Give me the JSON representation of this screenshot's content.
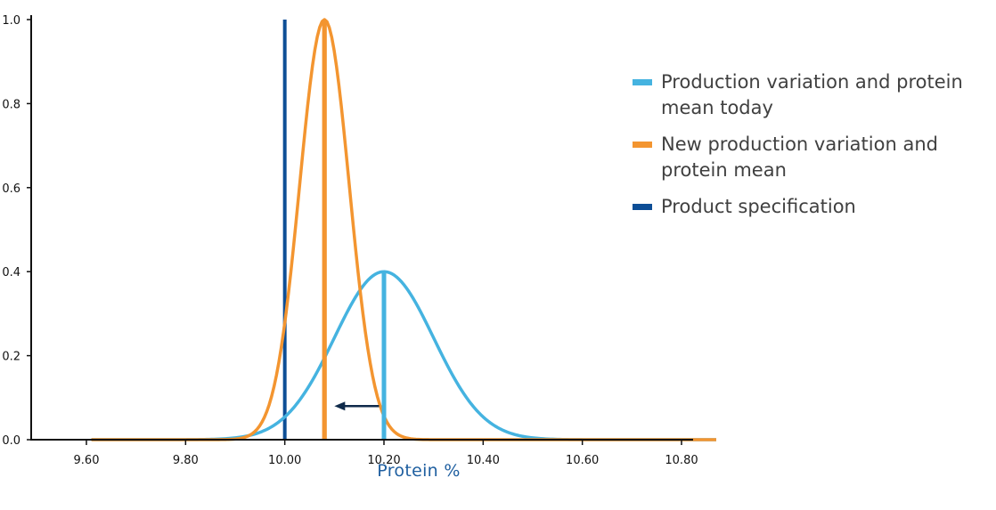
{
  "chart_data": {
    "type": "line",
    "xlabel": "Protein %",
    "ylabel": "",
    "xlim": [
      9.6,
      10.87
    ],
    "ylim": [
      0,
      1.0
    ],
    "x_ticks": [
      "9.60",
      "9.80",
      "10.00",
      "10.20",
      "10.40",
      "10.60",
      "10.80"
    ],
    "y_ticks": [
      "0.0",
      "0.2",
      "0.4",
      "0.6",
      "0.8",
      "1.0"
    ],
    "series": [
      {
        "name": "Production variation and protein mean today",
        "color": "#45b3e0",
        "curve": "normal",
        "mean": 10.2,
        "sd": 0.1,
        "peak": 0.4,
        "x_range": [
          9.61,
          10.87
        ]
      },
      {
        "name": "New production variation and protein mean",
        "color": "#f39530",
        "curve": "normal",
        "mean": 10.08,
        "sd": 0.05,
        "peak": 1.0,
        "x_range": [
          9.61,
          10.87
        ]
      },
      {
        "name": "Product specification",
        "color": "#0d4e96",
        "curve": "vertical_line",
        "x": 10.0,
        "y_range": [
          0,
          1.0
        ]
      }
    ],
    "mean_markers": [
      {
        "x": 10.2,
        "y_range": [
          0,
          0.4
        ],
        "color": "#45b3e0"
      },
      {
        "x": 10.08,
        "y_range": [
          0,
          1.0
        ],
        "color": "#f39530"
      }
    ],
    "annotation": {
      "type": "arrow",
      "direction": "left",
      "from_x": 10.19,
      "to_x": 10.1,
      "y": 0.08,
      "color": "#0f2a4a"
    },
    "grid": false,
    "legend_position": "right"
  },
  "legend": [
    {
      "label": "Production variation and protein mean today",
      "color": "#45b3e0"
    },
    {
      "label": "New production variation and protein mean",
      "color": "#f39530"
    },
    {
      "label": "Product specification",
      "color": "#0d4e96"
    }
  ]
}
